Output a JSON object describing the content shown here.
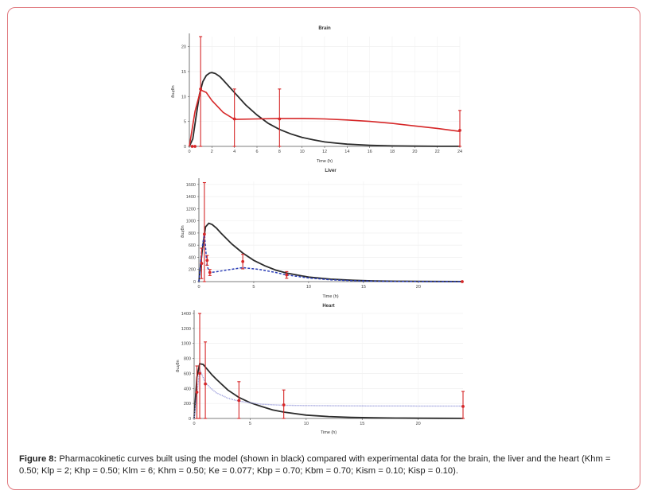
{
  "figure": {
    "caption_label": "Figure 8:",
    "caption_text": " Pharmacokinetic curves built using the model (shown in black) compared with experimental data for the brain, the liver and the heart (Khm = 0.50; Klp = 2; Khp = 0.50; Klm = 6; Khm = 0.50; Ke = 0.077; Kbp = 0.70; Kbm = 0.70; Kism = 0.10; Kisp = 0.10)."
  },
  "colors": {
    "model": "#2b2b2b",
    "data": "#d62728",
    "liver_dashed": "#2a3db5",
    "heart_dotted": "#8c8fd6",
    "frame": "#e0787e"
  },
  "chart_data": [
    {
      "type": "line",
      "title": "Brain",
      "xlabel": "Time (h)",
      "ylabel": "ug/mg",
      "xlim": [
        0,
        24
      ],
      "ylim": [
        0,
        22
      ],
      "xticks": [
        0,
        2,
        4,
        6,
        8,
        10,
        12,
        14,
        16,
        18,
        20,
        22,
        24
      ],
      "yticks": [
        0,
        5,
        10,
        15,
        20
      ],
      "grid": true,
      "series": [
        {
          "style": "model",
          "x": [
            0,
            0.3,
            0.6,
            0.9,
            1.2,
            1.5,
            1.8,
            2,
            2.3,
            2.7,
            3,
            4,
            5,
            6,
            7,
            8,
            9,
            10,
            11,
            12,
            13,
            14,
            16,
            18,
            20,
            22,
            24
          ],
          "values": [
            0,
            1.5,
            6,
            10.5,
            13,
            14.2,
            14.7,
            14.8,
            14.6,
            14,
            13.3,
            10.8,
            8.3,
            6.3,
            4.6,
            3.4,
            2.5,
            1.8,
            1.3,
            0.9,
            0.65,
            0.45,
            0.22,
            0.1,
            0.05,
            0.02,
            0.01
          ]
        },
        {
          "style": "data_fit",
          "x": [
            0,
            0.5,
            1,
            1.5,
            2,
            3,
            4,
            6,
            8,
            10,
            12,
            14,
            16,
            18,
            20,
            22,
            24
          ],
          "values": [
            0,
            7,
            11.3,
            10.8,
            9.2,
            6.8,
            5.4,
            5.5,
            5.6,
            5.6,
            5.5,
            5.3,
            5,
            4.6,
            4.1,
            3.6,
            3
          ]
        },
        {
          "style": "data_points",
          "x": [
            0.25,
            0.5,
            1,
            4,
            8,
            24
          ],
          "values": [
            0,
            0,
            11.5,
            5.5,
            5.5,
            3.2
          ],
          "err": [
            0,
            0,
            12,
            6,
            6,
            4
          ]
        }
      ]
    },
    {
      "type": "line",
      "title": "Liver",
      "xlabel": "Time (h)",
      "ylabel": "ug/mg",
      "xlim": [
        0,
        24
      ],
      "ylim": [
        0,
        1650
      ],
      "xticks": [
        0,
        5,
        10,
        15,
        20
      ],
      "yticks": [
        0,
        200,
        400,
        600,
        800,
        1000,
        1200,
        1400,
        1600
      ],
      "grid": true,
      "series": [
        {
          "style": "model",
          "x": [
            0,
            0.3,
            0.6,
            0.9,
            1.2,
            1.6,
            2,
            3,
            4,
            5,
            6,
            7,
            8,
            10,
            12,
            14,
            16,
            18,
            20,
            22,
            24
          ],
          "values": [
            0,
            500,
            900,
            960,
            940,
            880,
            800,
            620,
            470,
            350,
            260,
            190,
            140,
            75,
            40,
            22,
            12,
            7,
            4,
            2,
            1
          ]
        },
        {
          "style": "dashed",
          "x": [
            0,
            0.25,
            0.5,
            0.75,
            1,
            1.5,
            2.5,
            4,
            5.5,
            7,
            8,
            10,
            12,
            14,
            16,
            18,
            20,
            22,
            24
          ],
          "values": [
            0,
            500,
            800,
            250,
            150,
            160,
            190,
            230,
            200,
            150,
            110,
            60,
            30,
            15,
            8,
            4,
            2,
            1,
            0
          ]
        },
        {
          "style": "data_points",
          "x": [
            0.25,
            0.5,
            0.75,
            1,
            4,
            8,
            24
          ],
          "values": [
            300,
            780,
            350,
            150,
            330,
            110,
            0
          ],
          "err": [
            250,
            850,
            80,
            50,
            120,
            55,
            0
          ]
        }
      ]
    },
    {
      "type": "line",
      "title": "Heart",
      "xlabel": "Time (h)",
      "ylabel": "ug/mg",
      "xlim": [
        0,
        24
      ],
      "ylim": [
        0,
        1400
      ],
      "xticks": [
        0,
        5,
        10,
        15,
        20
      ],
      "yticks": [
        0,
        200,
        400,
        600,
        800,
        1000,
        1200,
        1400
      ],
      "grid": true,
      "series": [
        {
          "style": "model",
          "x": [
            0,
            0.25,
            0.5,
            0.8,
            1.2,
            1.6,
            2,
            3,
            4,
            5,
            6,
            7,
            8,
            10,
            12,
            14,
            16,
            18,
            20,
            22,
            24
          ],
          "values": [
            0,
            550,
            730,
            720,
            650,
            580,
            520,
            380,
            280,
            210,
            160,
            115,
            85,
            45,
            25,
            14,
            8,
            5,
            3,
            2,
            1
          ]
        },
        {
          "style": "dotted",
          "x": [
            0,
            0.5,
            1,
            1.5,
            2,
            3,
            4,
            6,
            8,
            10,
            12,
            14,
            16,
            18,
            20,
            22,
            24
          ],
          "values": [
            0,
            650,
            480,
            400,
            340,
            270,
            230,
            190,
            175,
            172,
            170,
            168,
            167,
            166,
            165,
            165,
            164
          ]
        },
        {
          "style": "data_points",
          "x": [
            0.25,
            0.5,
            1,
            4,
            8,
            24
          ],
          "values": [
            350,
            600,
            460,
            240,
            180,
            160
          ],
          "err": [
            350,
            800,
            560,
            250,
            200,
            200
          ]
        }
      ]
    }
  ]
}
